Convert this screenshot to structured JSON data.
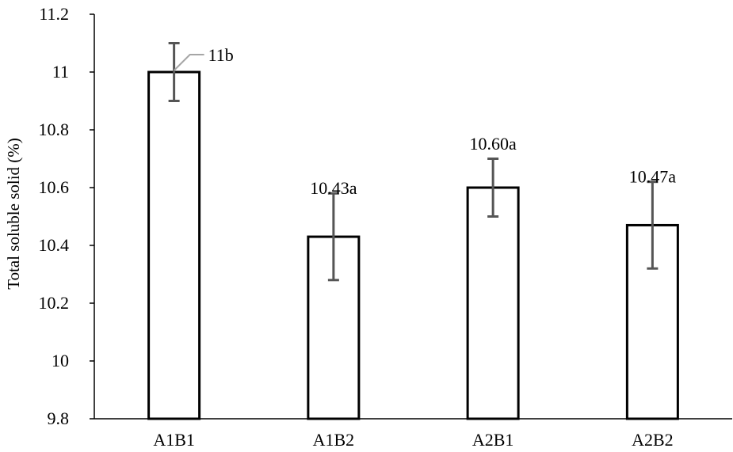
{
  "chart_data": {
    "type": "bar",
    "title": "",
    "xlabel": "",
    "ylabel": "Total soluble solid (%)",
    "ylim": [
      9.8,
      11.2
    ],
    "yticks": [
      "9.8",
      "10",
      "10.2",
      "10.4",
      "10.6",
      "10.8",
      "11",
      "11.2"
    ],
    "ytick_values": [
      9.8,
      10.0,
      10.2,
      10.4,
      10.6,
      10.8,
      11.0,
      11.2
    ],
    "categories": [
      "A1B1",
      "A1B2",
      "A2B1",
      "A2B2"
    ],
    "values": [
      11.0,
      10.43,
      10.6,
      10.47
    ],
    "error": [
      0.1,
      0.15,
      0.1,
      0.15
    ],
    "data_labels": [
      "11b",
      "10.43a",
      "10.60a",
      "10.47a"
    ],
    "grid": false,
    "legend": "none",
    "colors": {
      "bar_fill": "#ffffff",
      "bar_stroke": "#000000",
      "error_bar": "#555555",
      "leader_line": "#a6a6a6",
      "axis": "#000000"
    }
  }
}
